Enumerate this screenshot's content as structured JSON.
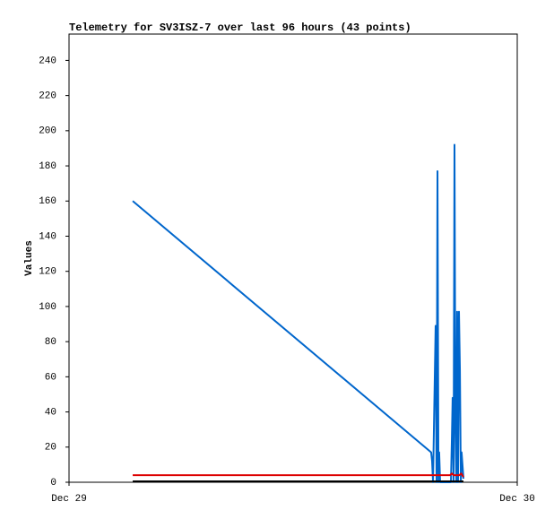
{
  "chart_data": {
    "type": "line",
    "title": "Telemetry for SV3ISZ-7 over last 96 hours (43 points)",
    "y_label": "Values",
    "xlim": [
      0,
      24
    ],
    "xticks": [
      {
        "value": 0,
        "label": "Dec 29"
      },
      {
        "value": 24,
        "label": "Dec 30"
      }
    ],
    "ylim": [
      0,
      255
    ],
    "yticks": [
      0,
      20,
      40,
      60,
      80,
      100,
      120,
      140,
      160,
      180,
      200,
      220,
      240
    ],
    "grid": false,
    "series": [
      {
        "color": "#0066cc",
        "x": [
          3.41,
          19.39,
          19.44,
          19.49,
          19.63,
          19.68,
          19.73,
          19.78,
          19.82,
          19.87,
          20.45,
          20.5,
          20.54,
          20.59,
          20.64,
          20.69,
          20.74,
          20.78,
          20.83,
          20.88,
          20.93,
          20.98,
          21.02,
          21.12
        ],
        "values": [
          160,
          17,
          12,
          0,
          89,
          0,
          177,
          0,
          17,
          0,
          0,
          25,
          48,
          0,
          192,
          30,
          0,
          97,
          0,
          97,
          64,
          0,
          17,
          2
        ]
      },
      {
        "color": "#dd0000",
        "x": [
          3.41,
          20.4,
          20.5,
          20.6,
          20.9,
          21.0,
          21.12
        ],
        "values": [
          4,
          4,
          5,
          4,
          4,
          5,
          3
        ]
      },
      {
        "color": "#000000",
        "x": [
          3.41,
          21.12
        ],
        "values": [
          0.5,
          0.5
        ]
      }
    ]
  }
}
